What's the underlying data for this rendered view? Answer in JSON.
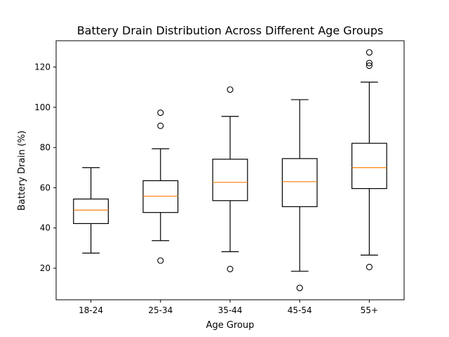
{
  "chart_data": {
    "type": "box",
    "title": "Battery Drain Distribution Across Different Age Groups",
    "xlabel": "Age Group",
    "ylabel": "Battery Drain (%)",
    "categories": [
      "18-24",
      "25-34",
      "35-44",
      "45-54",
      "55+"
    ],
    "boxes": [
      {
        "whisker_low": 27.5,
        "q1": 42.2,
        "median": 48.9,
        "q3": 54.4,
        "whisker_high": 70.0,
        "outliers": []
      },
      {
        "whisker_low": 33.7,
        "q1": 47.7,
        "median": 55.8,
        "q3": 63.5,
        "whisker_high": 79.4,
        "outliers": [
          23.8,
          90.8,
          97.3
        ]
      },
      {
        "whisker_low": 28.2,
        "q1": 53.6,
        "median": 62.7,
        "q3": 74.2,
        "whisker_high": 95.5,
        "outliers": [
          19.6,
          108.8
        ]
      },
      {
        "whisker_low": 18.5,
        "q1": 50.6,
        "median": 63.0,
        "q3": 74.5,
        "whisker_high": 103.8,
        "outliers": [
          10.2
        ]
      },
      {
        "whisker_low": 26.5,
        "q1": 59.6,
        "median": 70.0,
        "q3": 82.1,
        "whisker_high": 112.5,
        "outliers": [
          20.6,
          120.7,
          122.0,
          127.3
        ]
      }
    ],
    "yticks": [
      20,
      40,
      60,
      80,
      100,
      120
    ],
    "ylim": [
      4.3,
      133.1
    ],
    "grid": false,
    "colors": {
      "box": "#000000",
      "median": "#ff7f0e",
      "outlier": "#000000",
      "background": "#ffffff"
    }
  }
}
